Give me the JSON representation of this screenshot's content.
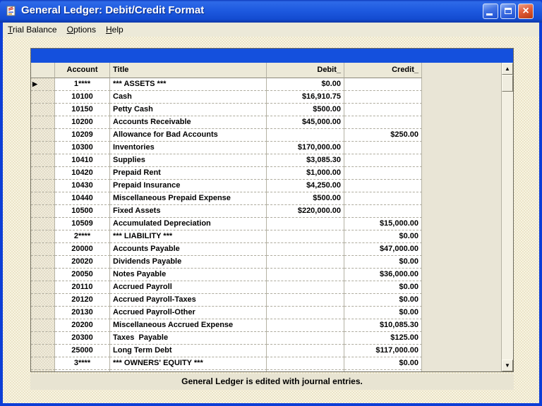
{
  "window": {
    "title": "General Ledger: Debit/Credit Format"
  },
  "menu": {
    "items": [
      {
        "mnemonic": "T",
        "rest": "rial Balance"
      },
      {
        "mnemonic": "O",
        "rest": "ptions"
      },
      {
        "mnemonic": "H",
        "rest": "elp"
      }
    ]
  },
  "grid": {
    "columns": {
      "account": "Account",
      "title": "Title",
      "debit": "Debit_",
      "credit": "Credit_"
    },
    "rows": [
      {
        "current": true,
        "account": "1****",
        "title": "*** ASSETS ***",
        "debit": "$0.00",
        "credit": ""
      },
      {
        "current": false,
        "account": "10100",
        "title": "Cash",
        "debit": "$16,910.75",
        "credit": ""
      },
      {
        "current": false,
        "account": "10150",
        "title": "Petty Cash",
        "debit": "$500.00",
        "credit": ""
      },
      {
        "current": false,
        "account": "10200",
        "title": "Accounts Receivable",
        "debit": "$45,000.00",
        "credit": ""
      },
      {
        "current": false,
        "account": "10209",
        "title": "Allowance for Bad Accounts",
        "debit": "",
        "credit": "$250.00"
      },
      {
        "current": false,
        "account": "10300",
        "title": "Inventories",
        "debit": "$170,000.00",
        "credit": ""
      },
      {
        "current": false,
        "account": "10410",
        "title": "Supplies",
        "debit": "$3,085.30",
        "credit": ""
      },
      {
        "current": false,
        "account": "10420",
        "title": "Prepaid Rent",
        "debit": "$1,000.00",
        "credit": ""
      },
      {
        "current": false,
        "account": "10430",
        "title": "Prepaid Insurance",
        "debit": "$4,250.00",
        "credit": ""
      },
      {
        "current": false,
        "account": "10440",
        "title": "Miscellaneous Prepaid Expense",
        "debit": "$500.00",
        "credit": ""
      },
      {
        "current": false,
        "account": "10500",
        "title": "Fixed Assets",
        "debit": "$220,000.00",
        "credit": ""
      },
      {
        "current": false,
        "account": "10509",
        "title": "Accumulated Depreciation",
        "debit": "",
        "credit": "$15,000.00"
      },
      {
        "current": false,
        "account": "2****",
        "title": "*** LIABILITY ***",
        "debit": "",
        "credit": "$0.00"
      },
      {
        "current": false,
        "account": "20000",
        "title": "Accounts Payable",
        "debit": "",
        "credit": "$47,000.00"
      },
      {
        "current": false,
        "account": "20020",
        "title": "Dividends Payable",
        "debit": "",
        "credit": "$0.00"
      },
      {
        "current": false,
        "account": "20050",
        "title": "Notes Payable",
        "debit": "",
        "credit": "$36,000.00"
      },
      {
        "current": false,
        "account": "20110",
        "title": "Accrued Payroll",
        "debit": "",
        "credit": "$0.00"
      },
      {
        "current": false,
        "account": "20120",
        "title": "Accrued Payroll-Taxes",
        "debit": "",
        "credit": "$0.00"
      },
      {
        "current": false,
        "account": "20130",
        "title": "Accrued Payroll-Other",
        "debit": "",
        "credit": "$0.00"
      },
      {
        "current": false,
        "account": "20200",
        "title": "Miscellaneous Accrued Expense",
        "debit": "",
        "credit": "$10,085.30"
      },
      {
        "current": false,
        "account": "20300",
        "title": "Taxes  Payable",
        "debit": "",
        "credit": "$125.00"
      },
      {
        "current": false,
        "account": "25000",
        "title": "Long Term Debt",
        "debit": "",
        "credit": "$117,000.00"
      },
      {
        "current": false,
        "account": "3****",
        "title": "*** OWNERS' EQUITY ***",
        "debit": "",
        "credit": "$0.00"
      }
    ]
  },
  "status": {
    "message": "General Ledger is edited with journal entries."
  },
  "icons": {
    "scroll_up": "▲",
    "scroll_down": "▼",
    "current_row": "▶",
    "close": "×"
  },
  "colors": {
    "titlebar_blue": "#1e5ae0",
    "grid_banner_blue": "#1450dd",
    "close_red": "#e25d3a",
    "panel_beige": "#ece9d8",
    "window_frame_blue": "#0d3ed6"
  }
}
